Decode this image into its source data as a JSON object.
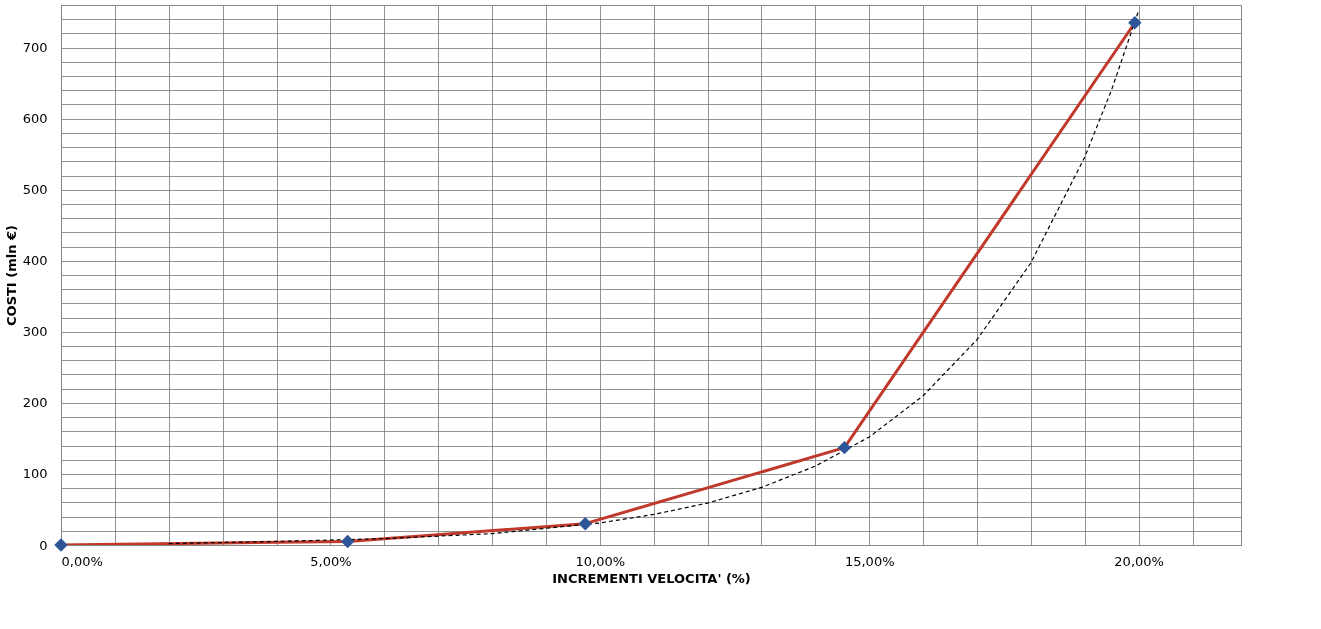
{
  "chart_data": {
    "type": "line",
    "xlabel": "INCREMENTI VELOCITA' (%)",
    "ylabel": "COSTI (mln €)",
    "xlim": [
      0,
      21.9
    ],
    "ylim": [
      0,
      760
    ],
    "xticks": [
      {
        "value": 0,
        "label": "0,00%"
      },
      {
        "value": 1,
        "label": null
      },
      {
        "value": 2,
        "label": null
      },
      {
        "value": 3,
        "label": null
      },
      {
        "value": 4,
        "label": null
      },
      {
        "value": 5,
        "label": "5,00%"
      },
      {
        "value": 6,
        "label": null
      },
      {
        "value": 7,
        "label": null
      },
      {
        "value": 8,
        "label": null
      },
      {
        "value": 9,
        "label": null
      },
      {
        "value": 10,
        "label": "10,00%"
      },
      {
        "value": 11,
        "label": null
      },
      {
        "value": 12,
        "label": null
      },
      {
        "value": 13,
        "label": null
      },
      {
        "value": 14,
        "label": null
      },
      {
        "value": 15,
        "label": "15,00%"
      },
      {
        "value": 16,
        "label": null
      },
      {
        "value": 17,
        "label": null
      },
      {
        "value": 18,
        "label": null
      },
      {
        "value": 19,
        "label": null
      },
      {
        "value": 20,
        "label": "20,00%"
      },
      {
        "value": 21,
        "label": null
      }
    ],
    "yticks": [
      0,
      {
        "value": 20,
        "label": null
      },
      {
        "value": 40,
        "label": null
      },
      {
        "value": 60,
        "label": null
      },
      {
        "value": 80,
        "label": null
      },
      100,
      {
        "value": 120,
        "label": null
      },
      {
        "value": 140,
        "label": null
      },
      {
        "value": 160,
        "label": null
      },
      {
        "value": 180,
        "label": null
      },
      200,
      {
        "value": 220,
        "label": null
      },
      {
        "value": 240,
        "label": null
      },
      {
        "value": 260,
        "label": null
      },
      {
        "value": 280,
        "label": null
      },
      300,
      {
        "value": 320,
        "label": null
      },
      {
        "value": 340,
        "label": null
      },
      {
        "value": 360,
        "label": null
      },
      {
        "value": 380,
        "label": null
      },
      400,
      {
        "value": 420,
        "label": null
      },
      {
        "value": 440,
        "label": null
      },
      {
        "value": 460,
        "label": null
      },
      {
        "value": 480,
        "label": null
      },
      500,
      {
        "value": 520,
        "label": null
      },
      {
        "value": 540,
        "label": null
      },
      {
        "value": 560,
        "label": null
      },
      {
        "value": 580,
        "label": null
      },
      600,
      {
        "value": 620,
        "label": null
      },
      {
        "value": 640,
        "label": null
      },
      {
        "value": 660,
        "label": null
      },
      {
        "value": 680,
        "label": null
      },
      700,
      {
        "value": 720,
        "label": null
      },
      {
        "value": 740,
        "label": null
      }
    ],
    "grid": true,
    "series": [
      {
        "color": "#c0392b",
        "marker": "none",
        "line_style": "solid",
        "x": [
          0,
          5.32,
          9.73,
          14.54,
          19.93
        ],
        "values": [
          0,
          5,
          30,
          137,
          735
        ]
      },
      {
        "color": "#000000",
        "marker": "none",
        "line_style": "dashed",
        "x": [
          2,
          4,
          6,
          8,
          10,
          11,
          12,
          13,
          14,
          15,
          16,
          17,
          18,
          19,
          19.5,
          20
        ],
        "values": [
          2,
          5,
          9,
          16,
          31,
          43,
          59,
          81,
          111,
          152,
          210,
          289,
          397,
          546,
          641,
          752
        ]
      },
      {
        "type": "scatter",
        "color": "#2e5597",
        "marker": "diamond",
        "x": [
          0,
          5.32,
          9.73,
          14.54,
          19.93
        ],
        "values": [
          0,
          5,
          30,
          137,
          735
        ]
      }
    ]
  }
}
